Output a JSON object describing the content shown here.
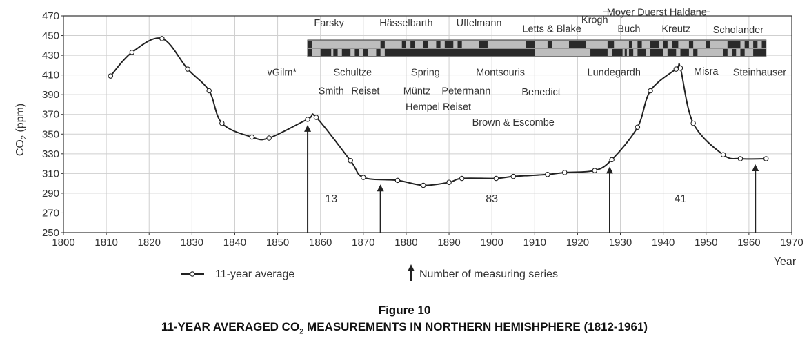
{
  "chart_data": {
    "type": "line",
    "x": [
      1811,
      1816,
      1823,
      1829,
      1834,
      1837,
      1844,
      1848,
      1857,
      1859,
      1867,
      1870,
      1878,
      1884,
      1890,
      1893,
      1901,
      1905,
      1913,
      1917,
      1924,
      1928,
      1934,
      1937,
      1943,
      1944,
      1947,
      1954,
      1958,
      1964
    ],
    "series": [
      {
        "name": "11-year average",
        "values": [
          409,
          433,
          447,
          416,
          394,
          361,
          347,
          346,
          365,
          367,
          323,
          306,
          303,
          298,
          301,
          305,
          305,
          307,
          309,
          311,
          313,
          324,
          357,
          394,
          416,
          417,
          361,
          329,
          325,
          325
        ]
      }
    ],
    "xlim": [
      1800,
      1970
    ],
    "ylim": [
      250,
      470
    ],
    "xticks": [
      1800,
      1810,
      1820,
      1830,
      1840,
      1850,
      1860,
      1870,
      1880,
      1890,
      1900,
      1910,
      1920,
      1930,
      1940,
      1950,
      1960,
      1970
    ],
    "yticks": [
      250,
      270,
      290,
      310,
      330,
      350,
      370,
      390,
      410,
      430,
      450,
      470
    ],
    "xlabel": "Year",
    "ylabel_main": "CO",
    "ylabel_sub": "2",
    "ylabel_unit": "(ppm)",
    "grid": true,
    "legend": {
      "line_label": "11-year average",
      "arrow_label": "Number of measuring series"
    },
    "arrows_x": [
      1857,
      1874,
      1927.5,
      1961.5
    ],
    "segment_counts": [
      {
        "x": 1862.5,
        "y": 285,
        "label": "13"
      },
      {
        "x": 1900,
        "y": 285,
        "label": "83"
      },
      {
        "x": 1944,
        "y": 285,
        "label": "41"
      }
    ],
    "researchers": [
      {
        "label": "Farsky",
        "x": 1862,
        "y": 463
      },
      {
        "label": "Hässelbarth",
        "x": 1880,
        "y": 463
      },
      {
        "label": "Uffelmann",
        "x": 1897,
        "y": 463
      },
      {
        "label": "Letts & Blake",
        "x": 1914,
        "y": 457
      },
      {
        "label": "Krogh",
        "x": 1924,
        "y": 466
      },
      {
        "label": "Moyer Duerst Haldane",
        "x": 1938.5,
        "y": 474
      },
      {
        "label": "Buch",
        "x": 1932,
        "y": 457
      },
      {
        "label": "Kreutz",
        "x": 1943,
        "y": 457
      },
      {
        "label": "Scholander",
        "x": 1957.5,
        "y": 456
      },
      {
        "label": "vGilm*",
        "x": 1851,
        "y": 413
      },
      {
        "label": "Schultze",
        "x": 1867.5,
        "y": 413
      },
      {
        "label": "Spring",
        "x": 1884.5,
        "y": 413
      },
      {
        "label": "Montsouris",
        "x": 1902,
        "y": 413
      },
      {
        "label": "Lundegardh",
        "x": 1928.5,
        "y": 413
      },
      {
        "label": "Misra",
        "x": 1950,
        "y": 414
      },
      {
        "label": "Steinhauser",
        "x": 1962.5,
        "y": 413
      },
      {
        "label": "Smith",
        "x": 1862.5,
        "y": 394
      },
      {
        "label": "Reiset",
        "x": 1870.5,
        "y": 394
      },
      {
        "label": "Müntz",
        "x": 1882.5,
        "y": 394
      },
      {
        "label": "Petermann",
        "x": 1894,
        "y": 394
      },
      {
        "label": "Benedict",
        "x": 1911.5,
        "y": 393
      },
      {
        "label": "Hempel Reiset",
        "x": 1887.5,
        "y": 378
      },
      {
        "label": "Brown & Escombe",
        "x": 1905,
        "y": 362
      }
    ]
  },
  "figure": {
    "number": "Figure 10",
    "title_pre": "11-YEAR AVERAGED CO",
    "title_sub": "2",
    "title_post": " MEASUREMENTS IN NORTHERN HEMISHPHERE (1812-1961)"
  }
}
